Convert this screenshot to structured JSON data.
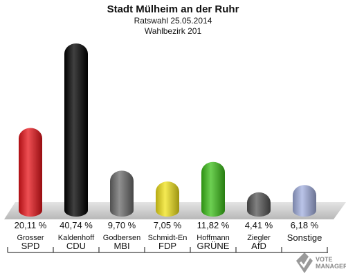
{
  "chart_data": {
    "type": "bar",
    "title": "Stadt Mülheim an der Ruhr",
    "subtitle": [
      "Ratswahl 25.05.2014",
      "Wahlbezirk 201"
    ],
    "categories": [
      "SPD",
      "CDU",
      "MBI",
      "FDP",
      "GRÜNE",
      "AfD",
      "Sonstige"
    ],
    "candidates": [
      "Grosser",
      "Kaldenhoff",
      "Godbersen",
      "Schmidt-En",
      "Hoffmann",
      "Ziegler",
      ""
    ],
    "values": [
      20.11,
      40.74,
      9.7,
      7.05,
      11.82,
      4.41,
      6.18
    ],
    "value_labels": [
      "20,11 %",
      "40,74 %",
      "9,70 %",
      "7,05 %",
      "11,82 %",
      "4,41 %",
      "6,18 %"
    ],
    "colors": [
      "#e8141a",
      "#000000",
      "#6b6b6b",
      "#f2e31a",
      "#3cc018",
      "#555555",
      "#a3b0e0"
    ],
    "ylim": [
      0,
      40.74
    ],
    "grid": false,
    "legend": "none"
  },
  "logo": {
    "text_line1": "VOTE",
    "text_line2": "MANAGER"
  }
}
